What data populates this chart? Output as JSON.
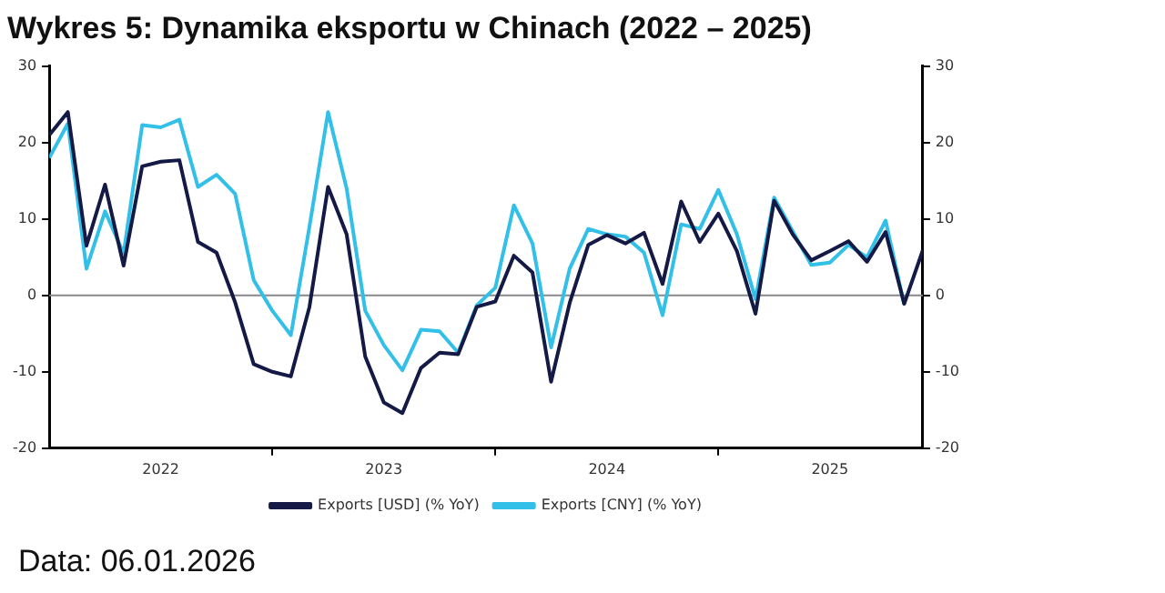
{
  "chart_data": {
    "type": "line",
    "title": "Wykres 5: Dynamika eksportu w Chinach (2022 – 2025)",
    "x": [
      "2022-01",
      "2022-02",
      "2022-03",
      "2022-04",
      "2022-05",
      "2022-06",
      "2022-07",
      "2022-08",
      "2022-09",
      "2022-10",
      "2022-11",
      "2022-12",
      "2023-01",
      "2023-02",
      "2023-03",
      "2023-04",
      "2023-05",
      "2023-06",
      "2023-07",
      "2023-08",
      "2023-09",
      "2023-10",
      "2023-11",
      "2023-12",
      "2024-01",
      "2024-02",
      "2024-03",
      "2024-04",
      "2024-05",
      "2024-06",
      "2024-07",
      "2024-08",
      "2024-09",
      "2024-10",
      "2024-11",
      "2024-12",
      "2025-01",
      "2025-02",
      "2025-03",
      "2025-04",
      "2025-05",
      "2025-06",
      "2025-07",
      "2025-08",
      "2025-09",
      "2025-10",
      "2025-11",
      "2025-12"
    ],
    "series": [
      {
        "name": "Exports [USD] (% YoY)",
        "color": "#141a45",
        "values": [
          21,
          24,
          6.5,
          14.5,
          3.9,
          16.9,
          17.5,
          17.7,
          7,
          5.6,
          -0.9,
          -9,
          -10,
          -10.6,
          -1.5,
          14.2,
          8,
          -8,
          -14,
          -15.4,
          -9.5,
          -7.5,
          -7.7,
          -1.5,
          -0.8,
          5.2,
          3,
          -11.3,
          -1,
          6.6,
          7.9,
          6.8,
          8.2,
          1.5,
          12.3,
          7,
          10.7,
          5.8,
          -2.4,
          12.4,
          8,
          4.6,
          5.8,
          7.1,
          4.4,
          8.3,
          -1.1,
          5.9
        ]
      },
      {
        "name": "Exports [CNY] (% YoY)",
        "color": "#33c0e8",
        "values": [
          18,
          22.5,
          3.5,
          11,
          5.5,
          22.3,
          22,
          23,
          14.2,
          15.8,
          13.3,
          2,
          -2,
          -5.2,
          9,
          24,
          14,
          -2,
          -6.5,
          -9.8,
          -4.5,
          -4.7,
          -7.5,
          -1.3,
          1,
          11.8,
          6.8,
          -6.8,
          3.5,
          8.7,
          8,
          7.7,
          5.6,
          -2.6,
          9.3,
          8.7,
          13.8,
          8,
          -0.5,
          12.8,
          8.4,
          4,
          4.3,
          6.6,
          5,
          9.8,
          -1.2,
          null
        ]
      }
    ],
    "xlim": [
      "2022-01",
      "2025-12"
    ],
    "xticks": [
      {
        "value": "2022-07",
        "label": "2022"
      },
      {
        "value": "2023-01",
        "label": null
      },
      {
        "value": "2023-07",
        "label": "2023"
      },
      {
        "value": "2024-01",
        "label": null
      },
      {
        "value": "2024-07",
        "label": "2024"
      },
      {
        "value": "2025-01",
        "label": null
      },
      {
        "value": "2025-07",
        "label": "2025"
      }
    ],
    "ylim": [
      -20,
      30
    ],
    "yticks": [
      -20,
      -10,
      0,
      10,
      20,
      30
    ],
    "y2lim": [
      -20,
      30
    ],
    "y2ticks": [
      -20,
      -10,
      0,
      10,
      20,
      30
    ],
    "ref_lines": [
      {
        "axis": "y",
        "value": 0,
        "color": "#888888"
      }
    ],
    "grid": false,
    "legend": "bottom",
    "marker": "none",
    "line_style": "solid",
    "annotations": [
      "Data: 06.01.2026"
    ]
  }
}
